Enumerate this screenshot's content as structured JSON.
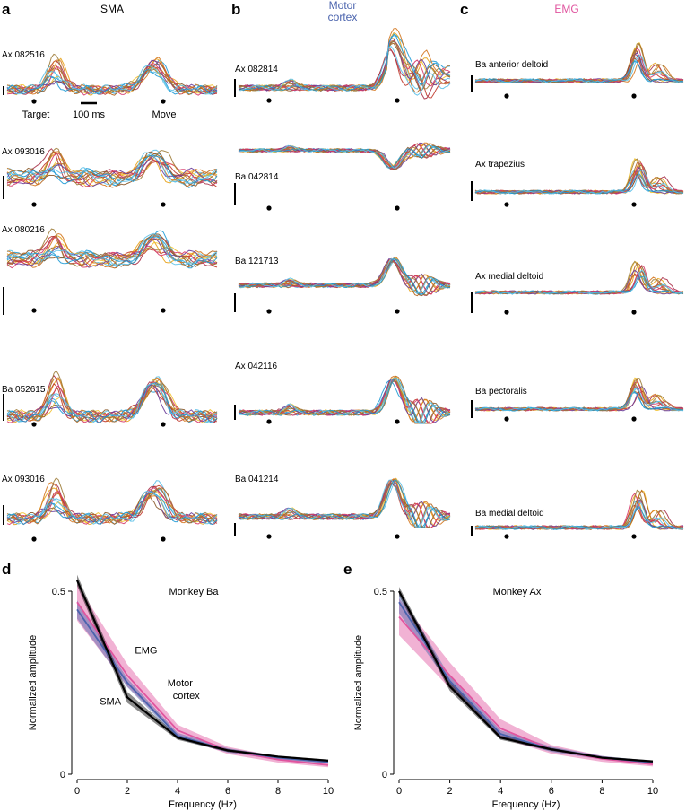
{
  "panels": {
    "a": {
      "letter": "a",
      "title": "SMA",
      "title_color": "#000000"
    },
    "b": {
      "letter": "b",
      "title_line1": "Motor",
      "title_line2": "cortex",
      "title_color": "#4a63ad"
    },
    "c": {
      "letter": "c",
      "title": "EMG",
      "title_color": "#e0559f"
    },
    "d": {
      "letter": "d"
    },
    "e": {
      "letter": "e"
    }
  },
  "rows": {
    "sma": [
      "Ax 082516",
      "Ax 093016",
      "Ax 080216",
      "Ba 052615",
      "Ax 093016"
    ],
    "motor": [
      "Ax 082814",
      "Ba 042814",
      "Ba 121713",
      "Ax 042116",
      "Ba 041214"
    ],
    "emg": [
      "Ba anterior deltoid",
      "Ax trapezius",
      "Ax medial deltoid",
      "Ba pectoralis",
      "Ba medial deltoid"
    ]
  },
  "markers": {
    "target": "Target",
    "scale": "100 ms",
    "move": "Move"
  },
  "trace_colors": [
    "#1f9bd6",
    "#5bc0e8",
    "#e8a31a",
    "#f2c230",
    "#c0392b",
    "#a8324a",
    "#8b5a2b",
    "#b5651d",
    "#d4771f",
    "#6a3d9a",
    "#d63a6a",
    "#9e7d3a"
  ],
  "chart_data": [
    {
      "type": "line",
      "panel": "d",
      "title": "Monkey Ba",
      "xlabel": "Frequency (Hz)",
      "ylabel": "Normalized amplitude",
      "xlim": [
        0,
        10
      ],
      "ylim": [
        0,
        0.5
      ],
      "xticks": [
        0,
        2,
        4,
        6,
        8,
        10
      ],
      "yticks": [
        0,
        0.5
      ],
      "series": [
        {
          "name": "EMG",
          "color": "#e0559f",
          "x": [
            0,
            2,
            4,
            6,
            8,
            10
          ],
          "values": [
            0.47,
            0.27,
            0.12,
            0.065,
            0.04,
            0.025
          ],
          "band": [
            0.05,
            0.03,
            0.015,
            0.01,
            0.008,
            0.006
          ]
        },
        {
          "name": "Motor cortex",
          "color": "#4a63ad",
          "x": [
            0,
            2,
            4,
            6,
            8,
            10
          ],
          "values": [
            0.45,
            0.25,
            0.105,
            0.065,
            0.045,
            0.033
          ],
          "band": [
            0.025,
            0.012,
            0.008,
            0.006,
            0.005,
            0.004
          ]
        },
        {
          "name": "SMA",
          "color": "#000000",
          "x": [
            0,
            2,
            4,
            6,
            8,
            10
          ],
          "values": [
            0.53,
            0.21,
            0.1,
            0.065,
            0.048,
            0.037
          ],
          "band": [
            0.015,
            0.015,
            0.006,
            0.004,
            0.003,
            0.003
          ]
        }
      ],
      "labels": [
        {
          "series": "EMG",
          "line1": "EMG"
        },
        {
          "series": "Motor cortex",
          "line1": "Motor",
          "line2": "cortex"
        },
        {
          "series": "SMA",
          "line1": "SMA"
        }
      ]
    },
    {
      "type": "line",
      "panel": "e",
      "title": "Monkey Ax",
      "xlabel": "Frequency (Hz)",
      "ylabel": "Normalized amplitude",
      "xlim": [
        0,
        10
      ],
      "ylim": [
        0,
        0.5
      ],
      "xticks": [
        0,
        2,
        4,
        6,
        8,
        10
      ],
      "yticks": [
        0,
        0.5
      ],
      "series": [
        {
          "name": "EMG",
          "color": "#e0559f",
          "x": [
            0,
            2,
            4,
            6,
            8,
            10
          ],
          "values": [
            0.43,
            0.27,
            0.125,
            0.068,
            0.042,
            0.027
          ],
          "band": [
            0.05,
            0.035,
            0.025,
            0.012,
            0.008,
            0.006
          ]
        },
        {
          "name": "Motor cortex",
          "color": "#4a63ad",
          "x": [
            0,
            2,
            4,
            6,
            8,
            10
          ],
          "values": [
            0.47,
            0.255,
            0.11,
            0.068,
            0.045,
            0.032
          ],
          "band": [
            0.03,
            0.012,
            0.01,
            0.007,
            0.005,
            0.004
          ]
        },
        {
          "name": "SMA",
          "color": "#000000",
          "x": [
            0,
            2,
            4,
            6,
            8,
            10
          ],
          "values": [
            0.5,
            0.24,
            0.1,
            0.068,
            0.045,
            0.035
          ],
          "band": [
            0.012,
            0.012,
            0.006,
            0.004,
            0.003,
            0.003
          ]
        }
      ],
      "labels": []
    }
  ]
}
